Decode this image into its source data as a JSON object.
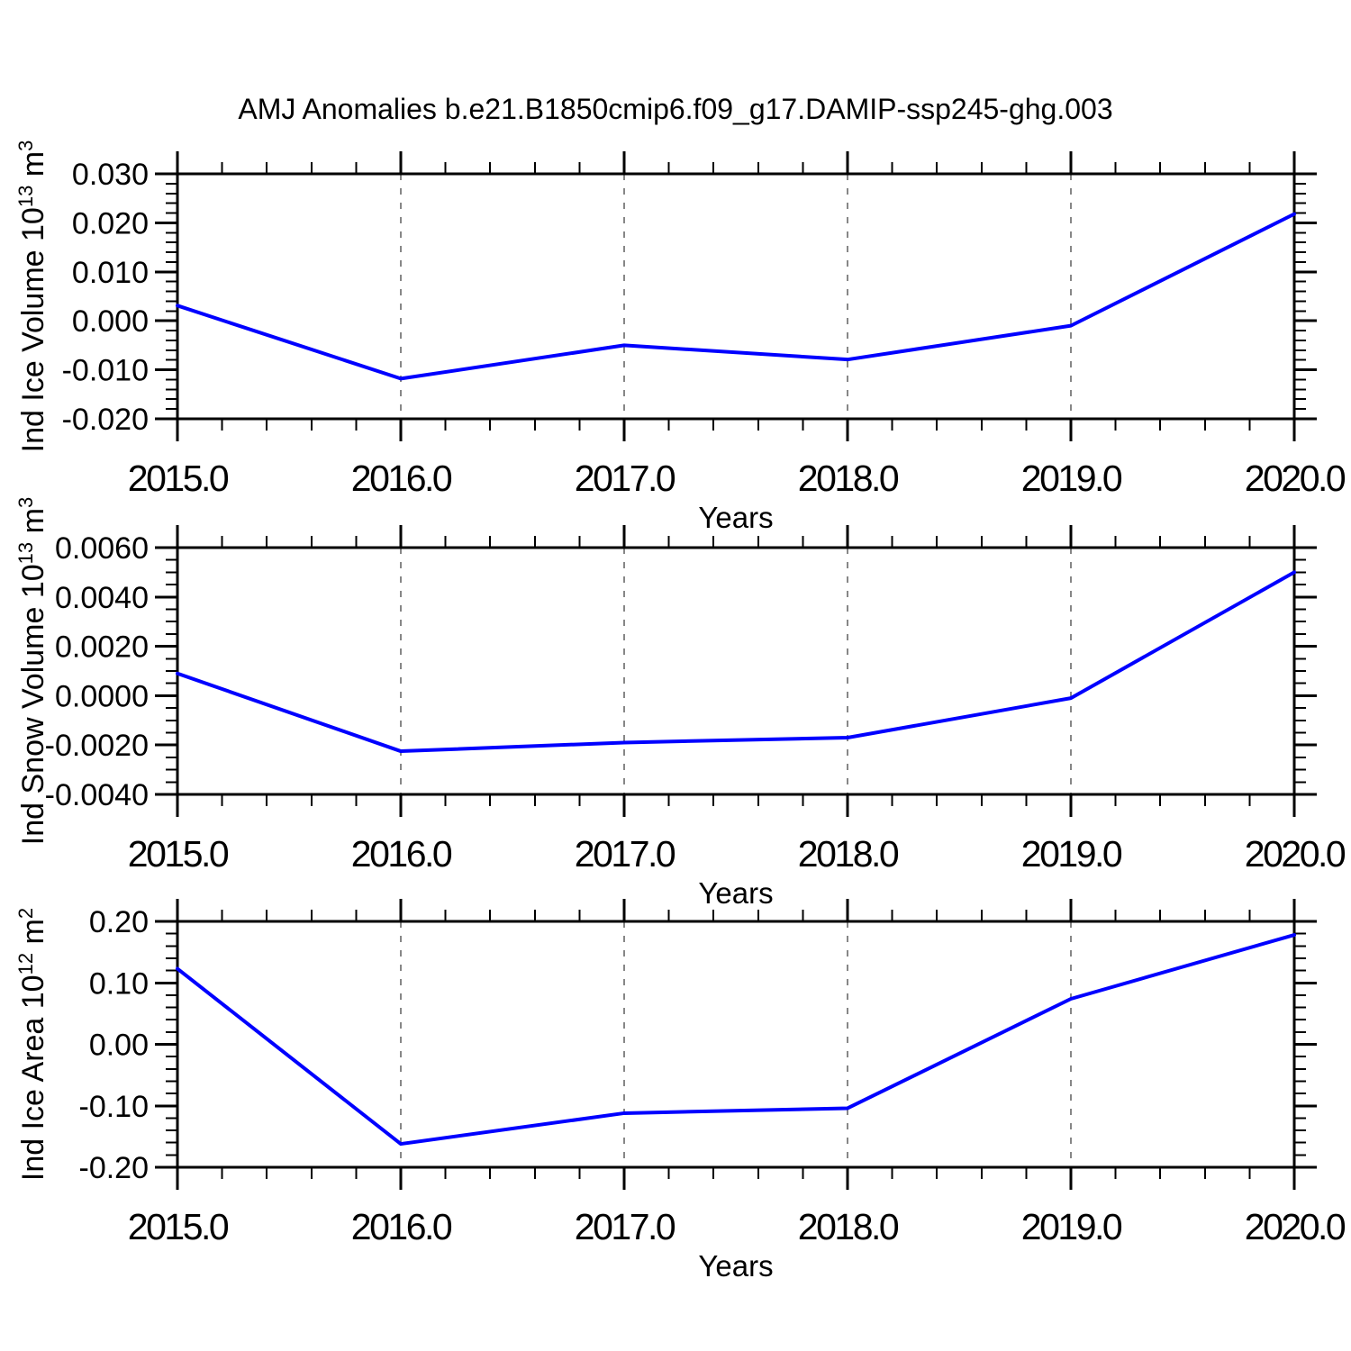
{
  "title": "AMJ Anomalies b.e21.B1850cmip6.f09_g17.DAMIP-ssp245-ghg.003",
  "colors": {
    "line": "#0000ff",
    "grid": "#878787",
    "axis": "#000000"
  },
  "chart_data": [
    {
      "type": "line",
      "ylabel_parts": [
        {
          "text": "Ind Ice Volume 10",
          "sup": false
        },
        {
          "text": "13",
          "sup": true
        },
        {
          "text": " m",
          "sup": false
        },
        {
          "text": "3",
          "sup": true
        }
      ],
      "xlabel": "Years",
      "x": [
        2015.0,
        2016.0,
        2017.0,
        2018.0,
        2019.0,
        2020.0
      ],
      "values": [
        0.0031,
        -0.0118,
        -0.005,
        -0.0079,
        -0.001,
        0.0218
      ],
      "xlim": [
        2015.0,
        2020.0
      ],
      "ylim": [
        -0.02,
        0.03
      ],
      "yticks": [
        {
          "v": 0.03,
          "label": "0.030"
        },
        {
          "v": 0.02,
          "label": "0.020"
        },
        {
          "v": 0.01,
          "label": "0.010"
        },
        {
          "v": 0.0,
          "label": "0.000"
        },
        {
          "v": -0.01,
          "label": "-0.010"
        },
        {
          "v": -0.02,
          "label": "-0.020"
        }
      ],
      "y_minor_step": 0.002,
      "xticks": [
        {
          "v": 2015.0,
          "label": "2015.0"
        },
        {
          "v": 2016.0,
          "label": "2016.0"
        },
        {
          "v": 2017.0,
          "label": "2017.0"
        },
        {
          "v": 2018.0,
          "label": "2018.0"
        },
        {
          "v": 2019.0,
          "label": "2019.0"
        },
        {
          "v": 2020.0,
          "label": "2020.0"
        }
      ],
      "x_minor_step": 0.2,
      "gridlines_x": [
        2016.0,
        2017.0,
        2018.0,
        2019.0
      ],
      "grid_dashed": true,
      "legend": null
    },
    {
      "type": "line",
      "ylabel_parts": [
        {
          "text": "Ind Snow Volume 10",
          "sup": false
        },
        {
          "text": "13",
          "sup": true
        },
        {
          "text": " m",
          "sup": false
        },
        {
          "text": "3",
          "sup": true
        }
      ],
      "xlabel": "Years",
      "x": [
        2015.0,
        2016.0,
        2017.0,
        2018.0,
        2019.0,
        2020.0
      ],
      "values": [
        0.0009,
        -0.00225,
        -0.0019,
        -0.0017,
        -0.0001,
        0.005
      ],
      "xlim": [
        2015.0,
        2020.0
      ],
      "ylim": [
        -0.004,
        0.006
      ],
      "yticks": [
        {
          "v": 0.006,
          "label": "0.0060"
        },
        {
          "v": 0.004,
          "label": "0.0040"
        },
        {
          "v": 0.002,
          "label": "0.0020"
        },
        {
          "v": 0.0,
          "label": "0.0000"
        },
        {
          "v": -0.002,
          "label": "-0.0020"
        },
        {
          "v": -0.004,
          "label": "-0.0040"
        }
      ],
      "y_minor_step": 0.0005,
      "xticks": [
        {
          "v": 2015.0,
          "label": "2015.0"
        },
        {
          "v": 2016.0,
          "label": "2016.0"
        },
        {
          "v": 2017.0,
          "label": "2017.0"
        },
        {
          "v": 2018.0,
          "label": "2018.0"
        },
        {
          "v": 2019.0,
          "label": "2019.0"
        },
        {
          "v": 2020.0,
          "label": "2020.0"
        }
      ],
      "x_minor_step": 0.2,
      "gridlines_x": [
        2016.0,
        2017.0,
        2018.0,
        2019.0
      ],
      "grid_dashed": true,
      "legend": null
    },
    {
      "type": "line",
      "ylabel_parts": [
        {
          "text": "Ind Ice Area 10",
          "sup": false
        },
        {
          "text": "12",
          "sup": true
        },
        {
          "text": " m",
          "sup": false
        },
        {
          "text": "2",
          "sup": true
        }
      ],
      "xlabel": "Years",
      "x": [
        2015.0,
        2016.0,
        2017.0,
        2018.0,
        2019.0,
        2020.0
      ],
      "values": [
        0.123,
        -0.162,
        -0.112,
        -0.104,
        0.074,
        0.178
      ],
      "xlim": [
        2015.0,
        2020.0
      ],
      "ylim": [
        -0.2,
        0.2
      ],
      "yticks": [
        {
          "v": 0.2,
          "label": "0.20"
        },
        {
          "v": 0.1,
          "label": "0.10"
        },
        {
          "v": 0.0,
          "label": "0.00"
        },
        {
          "v": -0.1,
          "label": "-0.10"
        },
        {
          "v": -0.2,
          "label": "-0.20"
        }
      ],
      "y_minor_step": 0.02,
      "xticks": [
        {
          "v": 2015.0,
          "label": "2015.0"
        },
        {
          "v": 2016.0,
          "label": "2016.0"
        },
        {
          "v": 2017.0,
          "label": "2017.0"
        },
        {
          "v": 2018.0,
          "label": "2018.0"
        },
        {
          "v": 2019.0,
          "label": "2019.0"
        },
        {
          "v": 2020.0,
          "label": "2020.0"
        }
      ],
      "x_minor_step": 0.2,
      "gridlines_x": [
        2016.0,
        2017.0,
        2018.0,
        2019.0
      ],
      "grid_dashed": true,
      "legend": null
    }
  ]
}
